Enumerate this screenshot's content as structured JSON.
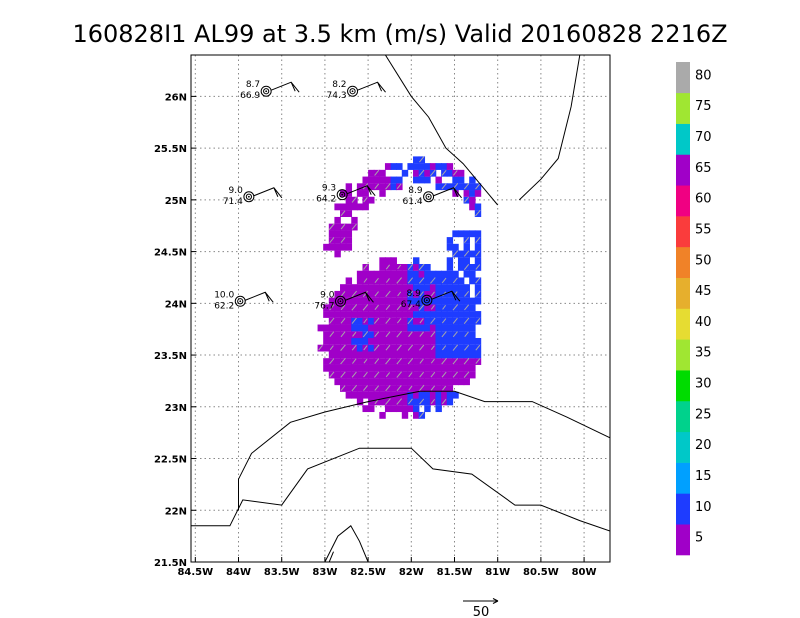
{
  "title": "160828I1 AL99 at 3.5 km (m/s) Valid 20160828 2216Z",
  "map": {
    "lon_range": [
      -84.55,
      -79.7
    ],
    "lat_range": [
      21.5,
      26.4
    ],
    "x_ticks": [
      {
        "value": -84.5,
        "label": "84.5W"
      },
      {
        "value": -84,
        "label": "84W"
      },
      {
        "value": -83.5,
        "label": "83.5W"
      },
      {
        "value": -83,
        "label": "83W"
      },
      {
        "value": -82.5,
        "label": "82.5W"
      },
      {
        "value": -82,
        "label": "82W"
      },
      {
        "value": -81.5,
        "label": "81.5W"
      },
      {
        "value": -81,
        "label": "81W"
      },
      {
        "value": -80.5,
        "label": "80.5W"
      },
      {
        "value": -80,
        "label": "80W"
      }
    ],
    "y_ticks": [
      {
        "value": 21.5,
        "label": "21.5N"
      },
      {
        "value": 22,
        "label": "22N"
      },
      {
        "value": 22.5,
        "label": "22.5N"
      },
      {
        "value": 23,
        "label": "23N"
      },
      {
        "value": 23.5,
        "label": "23.5N"
      },
      {
        "value": 24,
        "label": "24N"
      },
      {
        "value": 24.5,
        "label": "24.5N"
      },
      {
        "value": 25,
        "label": "25N"
      },
      {
        "value": 25.5,
        "label": "25.5N"
      },
      {
        "value": 26,
        "label": "26N"
      }
    ],
    "grid": true,
    "coastline_color": "#000000",
    "wind_speed_colors": {
      "purple": "#a000c8",
      "blue": "#1e3cff"
    }
  },
  "colorbar": {
    "colors": [
      "#a000c8",
      "#1e3cff",
      "#00a0ff",
      "#00c8c8",
      "#00d28c",
      "#00dc00",
      "#a0e632",
      "#e6dc32",
      "#e6af2d",
      "#f08228",
      "#fa3c3c",
      "#f00082",
      "#a000c8",
      "#00c8c8",
      "#a0e632",
      "#aaaaaa"
    ],
    "labels": [
      "5",
      "10",
      "15",
      "20",
      "25",
      "30",
      "35",
      "40",
      "45",
      "50",
      "55",
      "60",
      "65",
      "70",
      "75",
      "80"
    ]
  },
  "observations": [
    {
      "lon": -83.68,
      "lat": 26.05,
      "top": "8.7",
      "bottom": "66.9"
    },
    {
      "lon": -82.68,
      "lat": 26.05,
      "top": "8.2",
      "bottom": "74.3"
    },
    {
      "lon": -83.88,
      "lat": 25.03,
      "top": "9.0",
      "bottom": "71.4"
    },
    {
      "lon": -82.8,
      "lat": 25.05,
      "top": "9.3",
      "bottom": "64.2"
    },
    {
      "lon": -81.8,
      "lat": 25.03,
      "top": "8.9",
      "bottom": "61.4"
    },
    {
      "lon": -83.98,
      "lat": 24.02,
      "top": "10.0",
      "bottom": "62.2"
    },
    {
      "lon": -82.82,
      "lat": 24.02,
      "top": "9.0",
      "bottom": "76.7"
    },
    {
      "lon": -81.82,
      "lat": 24.03,
      "top": "8.9",
      "bottom": "67.4"
    }
  ],
  "reference_vector": {
    "label": "50"
  }
}
